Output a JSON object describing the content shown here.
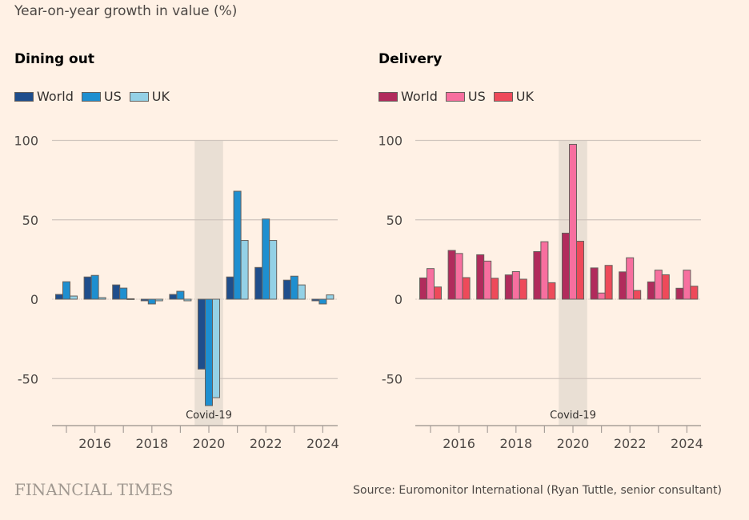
{
  "subtitle": "Year-on-year growth in value (%)",
  "footer": {
    "logo": "FINANCIAL TIMES",
    "source": "Source: Euromonitor International (Ryan Tuttle, senior consultant)"
  },
  "chart_data": [
    {
      "type": "bar",
      "title": "Dining out",
      "xlabel": "",
      "ylabel": "Year-on-year growth in value (%)",
      "ylim": [
        -80,
        100
      ],
      "yticks": [
        100,
        50,
        0,
        -50
      ],
      "categories": [
        "2015",
        "2016",
        "2017",
        "2018",
        "2019",
        "2020",
        "2021",
        "2022",
        "2023",
        "2024"
      ],
      "xtick_labels": [
        "2016",
        "2018",
        "2020",
        "2022",
        "2024"
      ],
      "grid": true,
      "legend": "top-left",
      "annotation": {
        "label": "Covid-19",
        "category": "2020"
      },
      "series": [
        {
          "name": "World",
          "color": "#1f4e8c",
          "values": [
            3,
            14,
            9,
            -1,
            3,
            -44,
            14,
            20,
            12,
            -1
          ]
        },
        {
          "name": "US",
          "color": "#1e8fd0",
          "values": [
            11,
            15,
            7,
            -3,
            5,
            -67,
            68,
            50.5,
            14.5,
            -3
          ]
        },
        {
          "name": "UK",
          "color": "#94d1e6",
          "values": [
            2,
            1,
            0.3,
            -1,
            -1,
            -62,
            37,
            37,
            9,
            2.7
          ]
        }
      ]
    },
    {
      "type": "bar",
      "title": "Delivery",
      "xlabel": "",
      "ylabel": "Year-on-year growth in value (%)",
      "ylim": [
        -80,
        100
      ],
      "yticks": [
        100,
        50,
        0,
        -50
      ],
      "categories": [
        "2015",
        "2016",
        "2017",
        "2018",
        "2019",
        "2020",
        "2021",
        "2022",
        "2023",
        "2024"
      ],
      "xtick_labels": [
        "2016",
        "2018",
        "2020",
        "2022",
        "2024"
      ],
      "grid": true,
      "legend": "top-left",
      "annotation": {
        "label": "Covid-19",
        "category": "2020"
      },
      "series": [
        {
          "name": "World",
          "color": "#b12b5c",
          "values": [
            13.4,
            30.7,
            28,
            15.3,
            30,
            41.6,
            19.7,
            17.2,
            10.9,
            6.9
          ]
        },
        {
          "name": "US",
          "color": "#f76f9f",
          "values": [
            19.3,
            28.8,
            24,
            17.4,
            36.2,
            97.5,
            3.9,
            26.1,
            18.3,
            18.3
          ]
        },
        {
          "name": "UK",
          "color": "#ee4a5a",
          "values": [
            7.7,
            13.6,
            13.2,
            12.6,
            10.4,
            36.5,
            21.3,
            5.5,
            15.4,
            8.2
          ]
        }
      ]
    }
  ]
}
